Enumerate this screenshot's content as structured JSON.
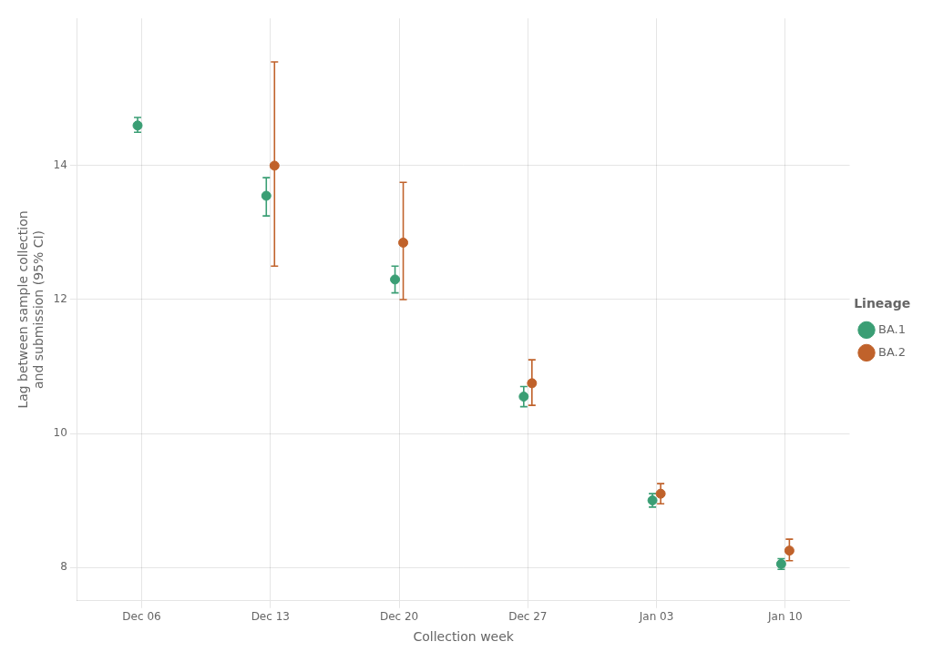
{
  "chart_data": {
    "type": "scatter",
    "xlabel": "Collection week",
    "ylabel": "Lag between sample collection\nand submission (95% CI)",
    "categories": [
      "Dec 06",
      "Dec 13",
      "Dec 20",
      "Dec 27",
      "Jan 03",
      "Jan 10"
    ],
    "series": [
      {
        "name": "BA.1",
        "color": "#3a9e74",
        "marker": "circle",
        "values": [
          14.6,
          13.55,
          12.3,
          10.55,
          9.0,
          8.05
        ],
        "lower": [
          14.5,
          13.25,
          12.1,
          10.4,
          8.9,
          7.97
        ],
        "upper": [
          14.72,
          13.82,
          12.5,
          10.7,
          9.1,
          8.13
        ]
      },
      {
        "name": "BA.2",
        "color": "#c0622b",
        "marker": "circle",
        "values": [
          null,
          14.0,
          12.85,
          10.75,
          9.1,
          8.25
        ],
        "lower": [
          null,
          12.5,
          12.0,
          10.42,
          8.95,
          8.1
        ],
        "upper": [
          null,
          15.55,
          13.75,
          11.1,
          9.25,
          8.42
        ]
      }
    ],
    "ylim": [
      7.5,
      16.2
    ],
    "yticks": [
      8,
      10,
      12,
      14
    ],
    "grid": true,
    "legend": "right",
    "legend_title": "Lineage"
  }
}
